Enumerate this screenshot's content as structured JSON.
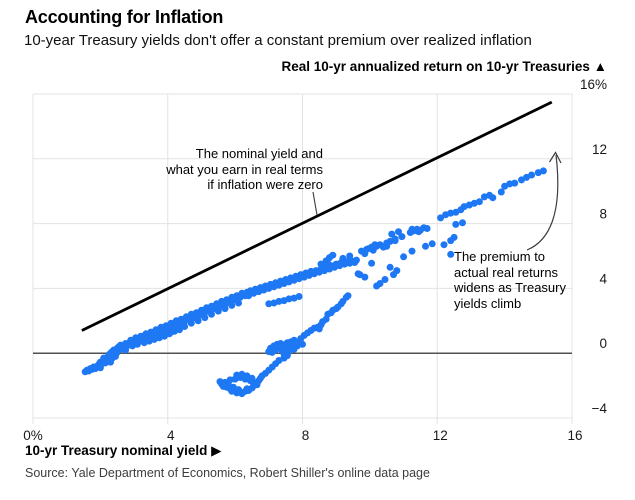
{
  "header": {
    "title": "Accounting for Inflation",
    "subtitle": "10-year Treasury yields don't offer a constant premium over realized inflation"
  },
  "chart": {
    "y_axis_title": "Real 10-yr annualized return on 10-yr Treasuries ▲",
    "x_axis_title": "10-yr Treasury nominal yield ▶"
  },
  "annotations": {
    "nominal_yield": "The nominal yield and\nwhat you earn in real terms\nif inflation were zero",
    "premium": "The premium to\nactual real returns\nwidens as Treasury\nyields climb"
  },
  "source": "Source: Yale Department of Economics, Robert Shiller's online data page",
  "chart_data": {
    "type": "scatter",
    "title": "Accounting for Inflation",
    "subtitle": "10-year Treasury yields don't offer a constant premium over realized inflation",
    "xlabel": "10-yr Treasury nominal yield (%)",
    "ylabel": "Real 10-yr annualized return on 10-yr Treasuries (%)",
    "xlim": [
      0,
      16
    ],
    "ylim": [
      -4,
      16
    ],
    "grid": true,
    "x_ticks": [
      {
        "value": 0,
        "label": "0%"
      },
      {
        "value": 4,
        "label": "4"
      },
      {
        "value": 8,
        "label": "8"
      },
      {
        "value": 12,
        "label": "12"
      },
      {
        "value": 16,
        "label": "16"
      }
    ],
    "y_ticks": [
      {
        "value": 16,
        "label": "16%"
      },
      {
        "value": 12,
        "label": "12"
      },
      {
        "value": 8,
        "label": "8"
      },
      {
        "value": 4,
        "label": "4"
      },
      {
        "value": 0,
        "label": "0"
      },
      {
        "value": -4,
        "label": "−4"
      }
    ],
    "reference_line": {
      "type": "identity",
      "label": "The nominal yield and what you earn in real terms if inflation were zero",
      "x1": 1.45,
      "y1": 1.4,
      "x2": 15.4,
      "y2": 15.5
    },
    "point_color": "#1e78f3",
    "line_color": "#000000",
    "zero_line_color": "#515151",
    "grid_color": "#e3e3e3",
    "arrow_color": "#3c3c3c",
    "points": [
      [
        1.55,
        -1.15
      ],
      [
        1.6,
        -1.05
      ],
      [
        1.65,
        -1.1
      ],
      [
        1.7,
        -0.95
      ],
      [
        1.75,
        -1.0
      ],
      [
        1.8,
        -0.85
      ],
      [
        1.85,
        -0.95
      ],
      [
        1.9,
        -0.8
      ],
      [
        1.95,
        -0.7
      ],
      [
        2.0,
        -0.75
      ],
      [
        2.0,
        -0.9
      ],
      [
        2.0,
        -0.55
      ],
      [
        2.05,
        -0.65
      ],
      [
        2.1,
        -0.5
      ],
      [
        2.1,
        -0.3
      ],
      [
        2.15,
        -0.6
      ],
      [
        2.15,
        -0.4
      ],
      [
        2.2,
        -0.25
      ],
      [
        2.2,
        -0.45
      ],
      [
        2.25,
        -0.1
      ],
      [
        2.25,
        -0.35
      ],
      [
        2.3,
        -0.2
      ],
      [
        2.3,
        0.0
      ],
      [
        2.3,
        -0.55
      ],
      [
        2.35,
        -0.3
      ],
      [
        2.35,
        0.1
      ],
      [
        2.4,
        -0.05
      ],
      [
        2.4,
        0.2
      ],
      [
        2.45,
        0.1
      ],
      [
        2.45,
        -0.2
      ],
      [
        2.5,
        0.3
      ],
      [
        2.5,
        0.05
      ],
      [
        2.55,
        0.4
      ],
      [
        2.6,
        0.25
      ],
      [
        2.6,
        0.5
      ],
      [
        2.6,
        0.45
      ],
      [
        2.7,
        0.35
      ],
      [
        2.75,
        0.6
      ],
      [
        2.75,
        0.2
      ],
      [
        2.85,
        0.5
      ],
      [
        2.9,
        0.8
      ],
      [
        2.95,
        0.45
      ],
      [
        3.0,
        0.65
      ],
      [
        3.05,
        0.95
      ],
      [
        3.1,
        0.55
      ],
      [
        3.15,
        0.75
      ],
      [
        3.2,
        1.05
      ],
      [
        3.3,
        0.9
      ],
      [
        3.35,
        1.2
      ],
      [
        3.45,
        1.0
      ],
      [
        3.5,
        1.3
      ],
      [
        3.6,
        1.15
      ],
      [
        3.65,
        1.45
      ],
      [
        3.75,
        1.3
      ],
      [
        3.8,
        1.6
      ],
      [
        3.9,
        1.4
      ],
      [
        3.95,
        1.7
      ],
      [
        4.05,
        1.55
      ],
      [
        4.1,
        1.85
      ],
      [
        4.2,
        1.7
      ],
      [
        4.25,
        2.0
      ],
      [
        4.35,
        1.8
      ],
      [
        4.4,
        2.1
      ],
      [
        4.5,
        1.95
      ],
      [
        4.55,
        2.25
      ],
      [
        4.65,
        2.1
      ],
      [
        4.7,
        2.4
      ],
      [
        4.8,
        2.2
      ],
      [
        4.85,
        2.5
      ],
      [
        4.95,
        2.35
      ],
      [
        5.0,
        2.65
      ],
      [
        5.1,
        2.5
      ],
      [
        5.15,
        2.8
      ],
      [
        5.25,
        2.6
      ],
      [
        5.3,
        2.9
      ],
      [
        5.4,
        2.75
      ],
      [
        5.45,
        3.05
      ],
      [
        5.55,
        2.9
      ],
      [
        5.6,
        3.2
      ],
      [
        5.7,
        3.0
      ],
      [
        5.75,
        3.3
      ],
      [
        5.85,
        3.15
      ],
      [
        5.9,
        3.45
      ],
      [
        6.0,
        3.3
      ],
      [
        6.05,
        3.55
      ],
      [
        6.15,
        3.45
      ],
      [
        6.2,
        3.7
      ],
      [
        6.3,
        3.55
      ],
      [
        3.9,
        1.15
      ],
      [
        4.1,
        1.3
      ],
      [
        4.3,
        1.5
      ],
      [
        4.5,
        1.65
      ],
      [
        4.7,
        1.85
      ],
      [
        4.9,
        2.0
      ],
      [
        5.1,
        2.2
      ],
      [
        5.3,
        2.4
      ],
      [
        5.5,
        2.6
      ],
      [
        5.7,
        2.75
      ],
      [
        5.9,
        2.95
      ],
      [
        6.1,
        3.1
      ],
      [
        6.35,
        3.75
      ],
      [
        6.4,
        3.55
      ],
      [
        6.45,
        3.85
      ],
      [
        6.55,
        3.7
      ],
      [
        6.6,
        3.95
      ],
      [
        6.7,
        3.8
      ],
      [
        6.75,
        4.05
      ],
      [
        6.85,
        3.9
      ],
      [
        6.9,
        4.15
      ],
      [
        7.0,
        4.0
      ],
      [
        7.05,
        4.25
      ],
      [
        7.15,
        4.1
      ],
      [
        7.2,
        4.35
      ],
      [
        7.3,
        4.2
      ],
      [
        7.35,
        4.45
      ],
      [
        7.45,
        4.3
      ],
      [
        7.5,
        4.55
      ],
      [
        7.6,
        4.4
      ],
      [
        7.65,
        4.65
      ],
      [
        7.75,
        4.5
      ],
      [
        7.8,
        4.75
      ],
      [
        7.9,
        4.6
      ],
      [
        7.95,
        4.85
      ],
      [
        8.05,
        4.7
      ],
      [
        8.1,
        4.95
      ],
      [
        8.2,
        4.8
      ],
      [
        8.25,
        5.05
      ],
      [
        8.35,
        4.9
      ],
      [
        8.4,
        5.1
      ],
      [
        8.5,
        5.0
      ],
      [
        8.55,
        5.2
      ],
      [
        8.65,
        5.1
      ],
      [
        8.7,
        5.3
      ],
      [
        8.8,
        5.2
      ],
      [
        8.85,
        5.4
      ],
      [
        8.95,
        5.3
      ],
      [
        9.0,
        5.5
      ],
      [
        9.1,
        5.4
      ],
      [
        9.15,
        5.6
      ],
      [
        9.25,
        5.5
      ],
      [
        9.3,
        5.65
      ],
      [
        9.4,
        5.55
      ],
      [
        9.45,
        5.7
      ],
      [
        9.55,
        5.6
      ],
      [
        9.6,
        5.75
      ],
      [
        8.55,
        5.5
      ],
      [
        8.7,
        5.7
      ],
      [
        8.8,
        5.9
      ],
      [
        8.9,
        6.05
      ],
      [
        8.75,
        5.55
      ],
      [
        8.6,
        5.35
      ],
      [
        9.2,
        5.85
      ],
      [
        9.4,
        6.0
      ],
      [
        9.7,
        4.85
      ],
      [
        9.85,
        4.7
      ],
      [
        9.75,
        6.3
      ],
      [
        9.85,
        6.15
      ],
      [
        9.9,
        6.4
      ],
      [
        9.95,
        6.45
      ],
      [
        10.05,
        6.55
      ],
      [
        10.1,
        6.35
      ],
      [
        10.2,
        6.6
      ],
      [
        10.3,
        6.7
      ],
      [
        10.4,
        6.55
      ],
      [
        10.5,
        6.8
      ],
      [
        10.6,
        6.9
      ],
      [
        10.75,
        6.95
      ],
      [
        10.5,
        6.6
      ],
      [
        10.15,
        6.7
      ],
      [
        10.75,
        7.05
      ],
      [
        10.95,
        7.2
      ],
      [
        10.65,
        7.35
      ],
      [
        10.85,
        7.5
      ],
      [
        11.2,
        7.45
      ],
      [
        11.3,
        7.55
      ],
      [
        11.4,
        7.65
      ],
      [
        11.5,
        7.6
      ],
      [
        11.6,
        7.75
      ],
      [
        11.7,
        7.7
      ],
      [
        11.45,
        7.5
      ],
      [
        11.25,
        7.65
      ],
      [
        12.1,
        8.35
      ],
      [
        12.25,
        8.55
      ],
      [
        12.4,
        8.65
      ],
      [
        12.55,
        8.7
      ],
      [
        12.7,
        8.85
      ],
      [
        12.8,
        9.05
      ],
      [
        12.95,
        9.15
      ],
      [
        13.1,
        9.25
      ],
      [
        13.25,
        9.35
      ],
      [
        13.4,
        9.65
      ],
      [
        13.55,
        9.75
      ],
      [
        13.65,
        9.6
      ],
      [
        13.9,
        9.95
      ],
      [
        14.0,
        10.3
      ],
      [
        14.15,
        10.45
      ],
      [
        14.3,
        10.5
      ],
      [
        14.5,
        10.7
      ],
      [
        14.65,
        10.85
      ],
      [
        14.8,
        11.0
      ],
      [
        15.0,
        11.15
      ],
      [
        15.15,
        11.25
      ],
      [
        12.2,
        6.7
      ],
      [
        12.4,
        6.95
      ],
      [
        12.55,
        7.95
      ],
      [
        12.75,
        8.05
      ],
      [
        12.5,
        7.15
      ],
      [
        12.4,
        6.1
      ],
      [
        11.65,
        6.6
      ],
      [
        11.85,
        6.75
      ],
      [
        11.25,
        6.3
      ],
      [
        11.0,
        5.95
      ],
      [
        10.6,
        5.3
      ],
      [
        10.8,
        5.1
      ],
      [
        10.05,
        5.55
      ],
      [
        10.45,
        4.55
      ],
      [
        10.3,
        4.3
      ],
      [
        10.7,
        4.85
      ],
      [
        10.2,
        4.15
      ],
      [
        9.65,
        4.9
      ],
      [
        3.3,
        0.65
      ],
      [
        3.45,
        0.75
      ],
      [
        3.6,
        0.85
      ],
      [
        3.75,
        0.95
      ],
      [
        3.9,
        1.05
      ],
      [
        4.05,
        1.2
      ],
      [
        4.2,
        1.35
      ],
      [
        4.35,
        1.45
      ],
      [
        7.0,
        3.05
      ],
      [
        7.15,
        3.1
      ],
      [
        7.3,
        3.2
      ],
      [
        7.45,
        3.25
      ],
      [
        7.6,
        3.35
      ],
      [
        7.75,
        3.4
      ],
      [
        7.9,
        3.5
      ],
      [
        7.0,
        0.1
      ],
      [
        7.05,
        0.3
      ],
      [
        7.1,
        0.05
      ],
      [
        7.15,
        0.45
      ],
      [
        7.2,
        0.2
      ],
      [
        7.25,
        0.55
      ],
      [
        7.3,
        0.35
      ],
      [
        7.35,
        0.6
      ],
      [
        7.4,
        0.15
      ],
      [
        7.45,
        0.5
      ],
      [
        7.5,
        0.3
      ],
      [
        7.55,
        0.65
      ],
      [
        7.6,
        0.45
      ],
      [
        7.65,
        0.7
      ],
      [
        7.7,
        0.55
      ],
      [
        7.75,
        0.8
      ],
      [
        7.8,
        0.6
      ],
      [
        7.85,
        0.45
      ],
      [
        7.9,
        0.7
      ],
      [
        7.6,
        0.1
      ],
      [
        7.45,
        -0.05
      ],
      [
        7.75,
        0.25
      ],
      [
        7.95,
        0.9
      ],
      [
        8.0,
        0.55
      ],
      [
        8.05,
        1.1
      ],
      [
        8.15,
        1.25
      ],
      [
        8.25,
        1.4
      ],
      [
        8.35,
        1.55
      ],
      [
        8.45,
        1.6
      ],
      [
        8.5,
        1.5
      ],
      [
        8.55,
        1.75
      ],
      [
        8.6,
        1.95
      ],
      [
        8.7,
        2.1
      ],
      [
        8.75,
        2.4
      ],
      [
        8.85,
        2.5
      ],
      [
        8.9,
        2.65
      ],
      [
        9.0,
        2.75
      ],
      [
        9.05,
        2.85
      ],
      [
        9.15,
        3.05
      ],
      [
        9.2,
        3.2
      ],
      [
        9.3,
        3.45
      ],
      [
        9.35,
        3.55
      ],
      [
        5.55,
        -1.75
      ],
      [
        5.6,
        -1.9
      ],
      [
        5.65,
        -2.05
      ],
      [
        5.7,
        -1.8
      ],
      [
        5.75,
        -2.1
      ],
      [
        5.8,
        -1.95
      ],
      [
        5.85,
        -2.2
      ],
      [
        5.9,
        -2.35
      ],
      [
        5.95,
        -2.1
      ],
      [
        6.0,
        -2.3
      ],
      [
        6.05,
        -2.45
      ],
      [
        6.1,
        -2.25
      ],
      [
        6.15,
        -2.4
      ],
      [
        6.2,
        -2.5
      ],
      [
        6.3,
        -2.35
      ],
      [
        6.35,
        -2.2
      ],
      [
        6.4,
        -2.3
      ],
      [
        6.5,
        -2.15
      ],
      [
        6.55,
        -2.0
      ],
      [
        6.6,
        -1.85
      ],
      [
        6.65,
        -1.95
      ],
      [
        6.7,
        -1.7
      ],
      [
        6.75,
        -1.55
      ],
      [
        6.8,
        -1.4
      ],
      [
        6.9,
        -1.25
      ],
      [
        7.0,
        -1.05
      ],
      [
        7.1,
        -0.85
      ],
      [
        7.2,
        -0.65
      ],
      [
        7.3,
        -0.45
      ],
      [
        7.45,
        -0.3
      ],
      [
        7.55,
        -0.15
      ],
      [
        5.85,
        -1.65
      ],
      [
        6.0,
        -1.6
      ],
      [
        6.05,
        -1.35
      ],
      [
        6.15,
        -1.5
      ],
      [
        6.2,
        -1.3
      ],
      [
        6.35,
        -1.4
      ],
      [
        6.45,
        -1.7
      ],
      [
        6.5,
        -1.55
      ],
      [
        6.3,
        -1.6
      ]
    ]
  }
}
